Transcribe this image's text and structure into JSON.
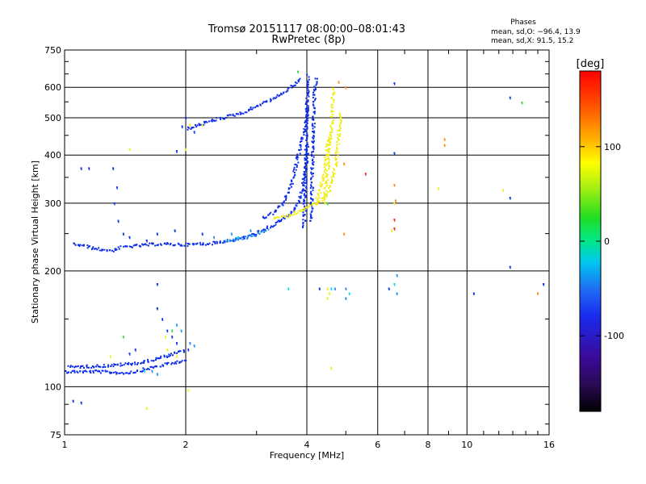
{
  "chart_data": {
    "type": "scatter",
    "title": "Tromsø 20151117 08:00:00–08:01:43",
    "subtitle": "RwPretec (8p)",
    "phase_header": "Phases",
    "phase_o": "mean, sd,O: −96.4, 13.9",
    "phase_x": "mean, sd,X:  91.5, 15.2",
    "xlabel": "Frequency [MHz]",
    "ylabel": "Stationary phase Virtual Height [km]",
    "x_scale": "log",
    "y_scale": "log",
    "xlim": [
      1,
      16
    ],
    "ylim": [
      75,
      750
    ],
    "x_ticks": [
      1,
      2,
      4,
      6,
      8,
      10,
      16
    ],
    "y_ticks": [
      75,
      100,
      200,
      300,
      400,
      500,
      600,
      750
    ],
    "grid": true,
    "colorbar": {
      "label": "[deg]",
      "range": [
        -180,
        180
      ],
      "ticks": [
        -100,
        0,
        100
      ]
    },
    "series": [
      {
        "color": "#0a2bea",
        "segments": [
          [
            [
              1.0,
              110
            ],
            [
              1.2,
              110
            ],
            [
              1.4,
              109
            ],
            [
              1.5,
              110
            ],
            [
              1.6,
              112
            ],
            [
              1.8,
              115
            ],
            [
              2.0,
              118
            ]
          ],
          [
            [
              1.02,
              113
            ],
            [
              1.3,
              114
            ],
            [
              1.55,
              116
            ],
            [
              1.75,
              120
            ],
            [
              2.0,
              125
            ]
          ],
          [
            [
              1.05,
              236
            ],
            [
              1.12,
              233
            ],
            [
              1.2,
              229
            ],
            [
              1.3,
              227
            ],
            [
              1.4,
              232
            ],
            [
              1.55,
              234
            ],
            [
              1.7,
              236
            ],
            [
              2.0,
              235
            ],
            [
              2.3,
              237
            ],
            [
              2.7,
              243
            ],
            [
              3.0,
              252
            ],
            [
              3.3,
              265
            ],
            [
              3.6,
              280
            ],
            [
              3.8,
              300
            ],
            [
              3.9,
              335
            ],
            [
              3.97,
              380
            ],
            [
              4.0,
              430
            ]
          ],
          [
            [
              2.0,
              470
            ],
            [
              2.2,
              485
            ],
            [
              2.5,
              505
            ],
            [
              2.8,
              520
            ],
            [
              3.0,
              540
            ],
            [
              3.3,
              565
            ],
            [
              3.5,
              585
            ],
            [
              3.7,
              610
            ],
            [
              3.85,
              640
            ]
          ],
          [
            [
              3.1,
              275
            ],
            [
              3.3,
              285
            ],
            [
              3.5,
              305
            ],
            [
              3.65,
              340
            ],
            [
              3.75,
              380
            ],
            [
              3.85,
              430
            ],
            [
              3.95,
              480
            ],
            [
              4.0,
              540
            ]
          ],
          [
            [
              3.92,
              260
            ],
            [
              3.94,
              320
            ],
            [
              3.96,
              400
            ],
            [
              3.98,
              500
            ],
            [
              4.0,
              600
            ],
            [
              4.02,
              650
            ]
          ],
          [
            [
              4.08,
              270
            ],
            [
              4.1,
              340
            ],
            [
              4.12,
              420
            ],
            [
              4.14,
              500
            ],
            [
              4.16,
              580
            ],
            [
              4.2,
              640
            ]
          ]
        ],
        "points": [
          [
            1.32,
            370
          ],
          [
            1.35,
            330
          ],
          [
            1.33,
            300
          ],
          [
            1.36,
            270
          ],
          [
            1.4,
            250
          ],
          [
            1.45,
            245
          ],
          [
            1.6,
            240
          ],
          [
            1.7,
            250
          ],
          [
            1.88,
            255
          ],
          [
            1.1,
            370
          ],
          [
            1.15,
            370
          ],
          [
            1.96,
            475
          ],
          [
            2.0,
            500
          ],
          [
            2.1,
            460
          ],
          [
            1.9,
            410
          ],
          [
            2.2,
            250
          ],
          [
            1.7,
            160
          ],
          [
            1.75,
            150
          ],
          [
            1.8,
            140
          ],
          [
            1.85,
            135
          ],
          [
            1.9,
            130
          ],
          [
            2.03,
            125
          ],
          [
            1.5,
            125
          ],
          [
            1.45,
            122
          ],
          [
            1.05,
            92
          ],
          [
            1.1,
            91
          ],
          [
            6.6,
            615
          ],
          [
            6.6,
            405
          ],
          [
            12.8,
            565
          ],
          [
            12.8,
            310
          ],
          [
            12.8,
            205
          ],
          [
            4.3,
            180
          ],
          [
            6.4,
            180
          ],
          [
            15.5,
            185
          ],
          [
            10.4,
            175
          ],
          [
            1.7,
            185
          ]
        ]
      },
      {
        "color": "#1e8cf0",
        "segments": [
          [
            [
              2.5,
              240
            ],
            [
              2.8,
              245
            ],
            [
              3.0,
              250
            ],
            [
              3.2,
              258
            ]
          ]
        ],
        "points": [
          [
            2.35,
            245
          ],
          [
            2.6,
            250
          ],
          [
            2.9,
            255
          ],
          [
            1.9,
            145
          ],
          [
            1.95,
            140
          ],
          [
            2.05,
            130
          ],
          [
            2.1,
            128
          ],
          [
            1.65,
            110
          ],
          [
            1.7,
            108
          ],
          [
            6.7,
            195
          ],
          [
            4.7,
            180
          ],
          [
            5.0,
            170
          ],
          [
            5.0,
            180
          ],
          [
            6.7,
            175
          ]
        ]
      },
      {
        "color": "#00e0ea",
        "segments": [],
        "points": [
          [
            3.6,
            180
          ],
          [
            2.7,
            245
          ],
          [
            4.6,
            180
          ],
          [
            5.1,
            175
          ],
          [
            6.6,
            185
          ],
          [
            1.58,
            110
          ]
        ]
      },
      {
        "color": "#38d838",
        "segments": [],
        "points": [
          [
            3.8,
            660
          ],
          [
            1.85,
            140
          ],
          [
            1.4,
            135
          ],
          [
            13.7,
            548
          ],
          [
            4.5,
            300
          ]
        ]
      },
      {
        "color": "#f0ee10",
        "segments": [
          [
            [
              3.3,
              275
            ],
            [
              3.6,
              280
            ],
            [
              3.8,
              287
            ],
            [
              4.0,
              295
            ],
            [
              4.3,
              305
            ],
            [
              4.5,
              320
            ],
            [
              4.6,
              345
            ],
            [
              4.7,
              380
            ],
            [
              4.75,
              420
            ],
            [
              4.8,
              470
            ],
            [
              4.85,
              520
            ]
          ],
          [
            [
              4.4,
              300
            ],
            [
              4.45,
              340
            ],
            [
              4.5,
              380
            ],
            [
              4.55,
              430
            ],
            [
              4.6,
              490
            ],
            [
              4.62,
              560
            ],
            [
              4.65,
              600
            ]
          ],
          [
            [
              4.2,
              300
            ],
            [
              4.3,
              330
            ],
            [
              4.4,
              360
            ],
            [
              4.45,
              400
            ],
            [
              4.5,
              450
            ]
          ]
        ],
        "points": [
          [
            2.2,
            480
          ],
          [
            2.05,
            480
          ],
          [
            2.0,
            415
          ],
          [
            1.45,
            415
          ],
          [
            1.78,
            135
          ],
          [
            1.8,
            125
          ],
          [
            1.9,
            120
          ],
          [
            1.3,
            120
          ],
          [
            2.03,
            98
          ],
          [
            1.6,
            88
          ],
          [
            4.5,
            180
          ],
          [
            4.5,
            170
          ],
          [
            4.55,
            175
          ],
          [
            4.6,
            112
          ],
          [
            6.6,
            300
          ],
          [
            6.5,
            255
          ],
          [
            8.5,
            328
          ],
          [
            12.3,
            325
          ]
        ]
      },
      {
        "color": "#ff8c10",
        "segments": [],
        "points": [
          [
            4.8,
            620
          ],
          [
            5.0,
            600
          ],
          [
            4.95,
            250
          ],
          [
            6.6,
            335
          ],
          [
            6.65,
            305
          ],
          [
            8.8,
            425
          ],
          [
            8.8,
            440
          ],
          [
            15.0,
            175
          ],
          [
            4.95,
            380
          ]
        ]
      },
      {
        "color": "#f02020",
        "segments": [],
        "points": [
          [
            5.6,
            358
          ],
          [
            6.6,
            258
          ],
          [
            6.6,
            272
          ]
        ]
      }
    ]
  }
}
